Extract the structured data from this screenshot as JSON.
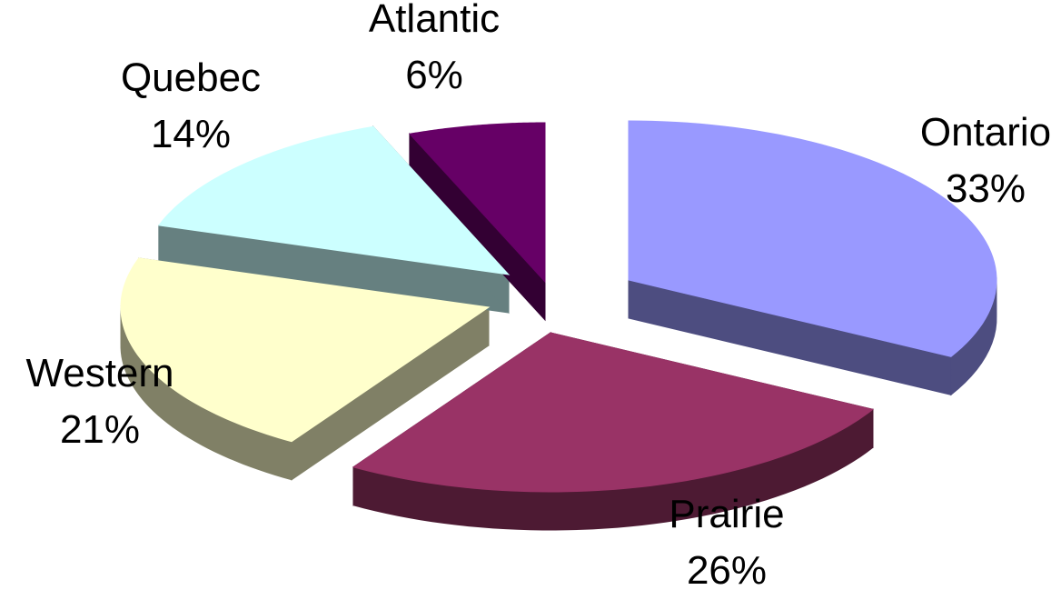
{
  "chart_data": {
    "type": "pie",
    "style": "3d-exploded",
    "title": "",
    "slices": [
      {
        "name": "Ontario",
        "value": 33,
        "label": "33%",
        "color": "#9999FF",
        "side_color": "#4D4D80"
      },
      {
        "name": "Prairie",
        "value": 26,
        "label": "26%",
        "color": "#993366",
        "side_color": "#4D1A33"
      },
      {
        "name": "Western",
        "value": 21,
        "label": "21%",
        "color": "#FFFFCC",
        "side_color": "#808066"
      },
      {
        "name": "Quebec",
        "value": 14,
        "label": "14%",
        "color": "#CCFFFF",
        "side_color": "#668080"
      },
      {
        "name": "Atlantic",
        "value": 6,
        "label": "6%",
        "color": "#660066",
        "side_color": "#330033"
      }
    ],
    "legend": "none"
  }
}
